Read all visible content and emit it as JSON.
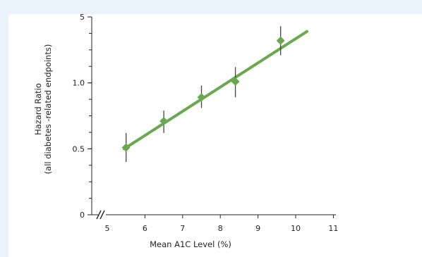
{
  "chart_data": {
    "type": "scatter",
    "title": "",
    "xlabel": "Mean A1C Level (%)",
    "ylabel": [
      "Hazard Ratio",
      "(all diabetes -related endpoints)"
    ],
    "x_ticks": [
      "5",
      "6",
      "7",
      "8",
      "9",
      "10",
      "11"
    ],
    "x_tick_values": [
      5,
      6,
      7,
      8,
      9,
      10,
      11
    ],
    "y_ticks": [
      "0",
      "0.5",
      "1.0",
      "5"
    ],
    "y_tick_values": [
      0,
      0.5,
      1.0,
      1.5
    ],
    "xlim": [
      4.6,
      11.1
    ],
    "ylim": [
      0,
      1.5
    ],
    "axis_break": true,
    "points": [
      {
        "x": 5.5,
        "y": 0.51,
        "low": 0.4,
        "high": 0.62
      },
      {
        "x": 6.5,
        "y": 0.71,
        "low": 0.62,
        "high": 0.79
      },
      {
        "x": 7.5,
        "y": 0.89,
        "low": 0.81,
        "high": 0.98
      },
      {
        "x": 8.4,
        "y": 1.01,
        "low": 0.89,
        "high": 1.12
      },
      {
        "x": 9.6,
        "y": 1.32,
        "low": 1.21,
        "high": 1.43
      }
    ],
    "trend_line": {
      "x1": 5.45,
      "y1": 0.5,
      "x2": 10.3,
      "y2": 1.39
    },
    "colors": {
      "marker": "#6aa84f",
      "line": "#6aa84f",
      "error_bar": "#444444",
      "axis": "#222222",
      "background_band": "#eaf3fb"
    },
    "grid": false
  }
}
